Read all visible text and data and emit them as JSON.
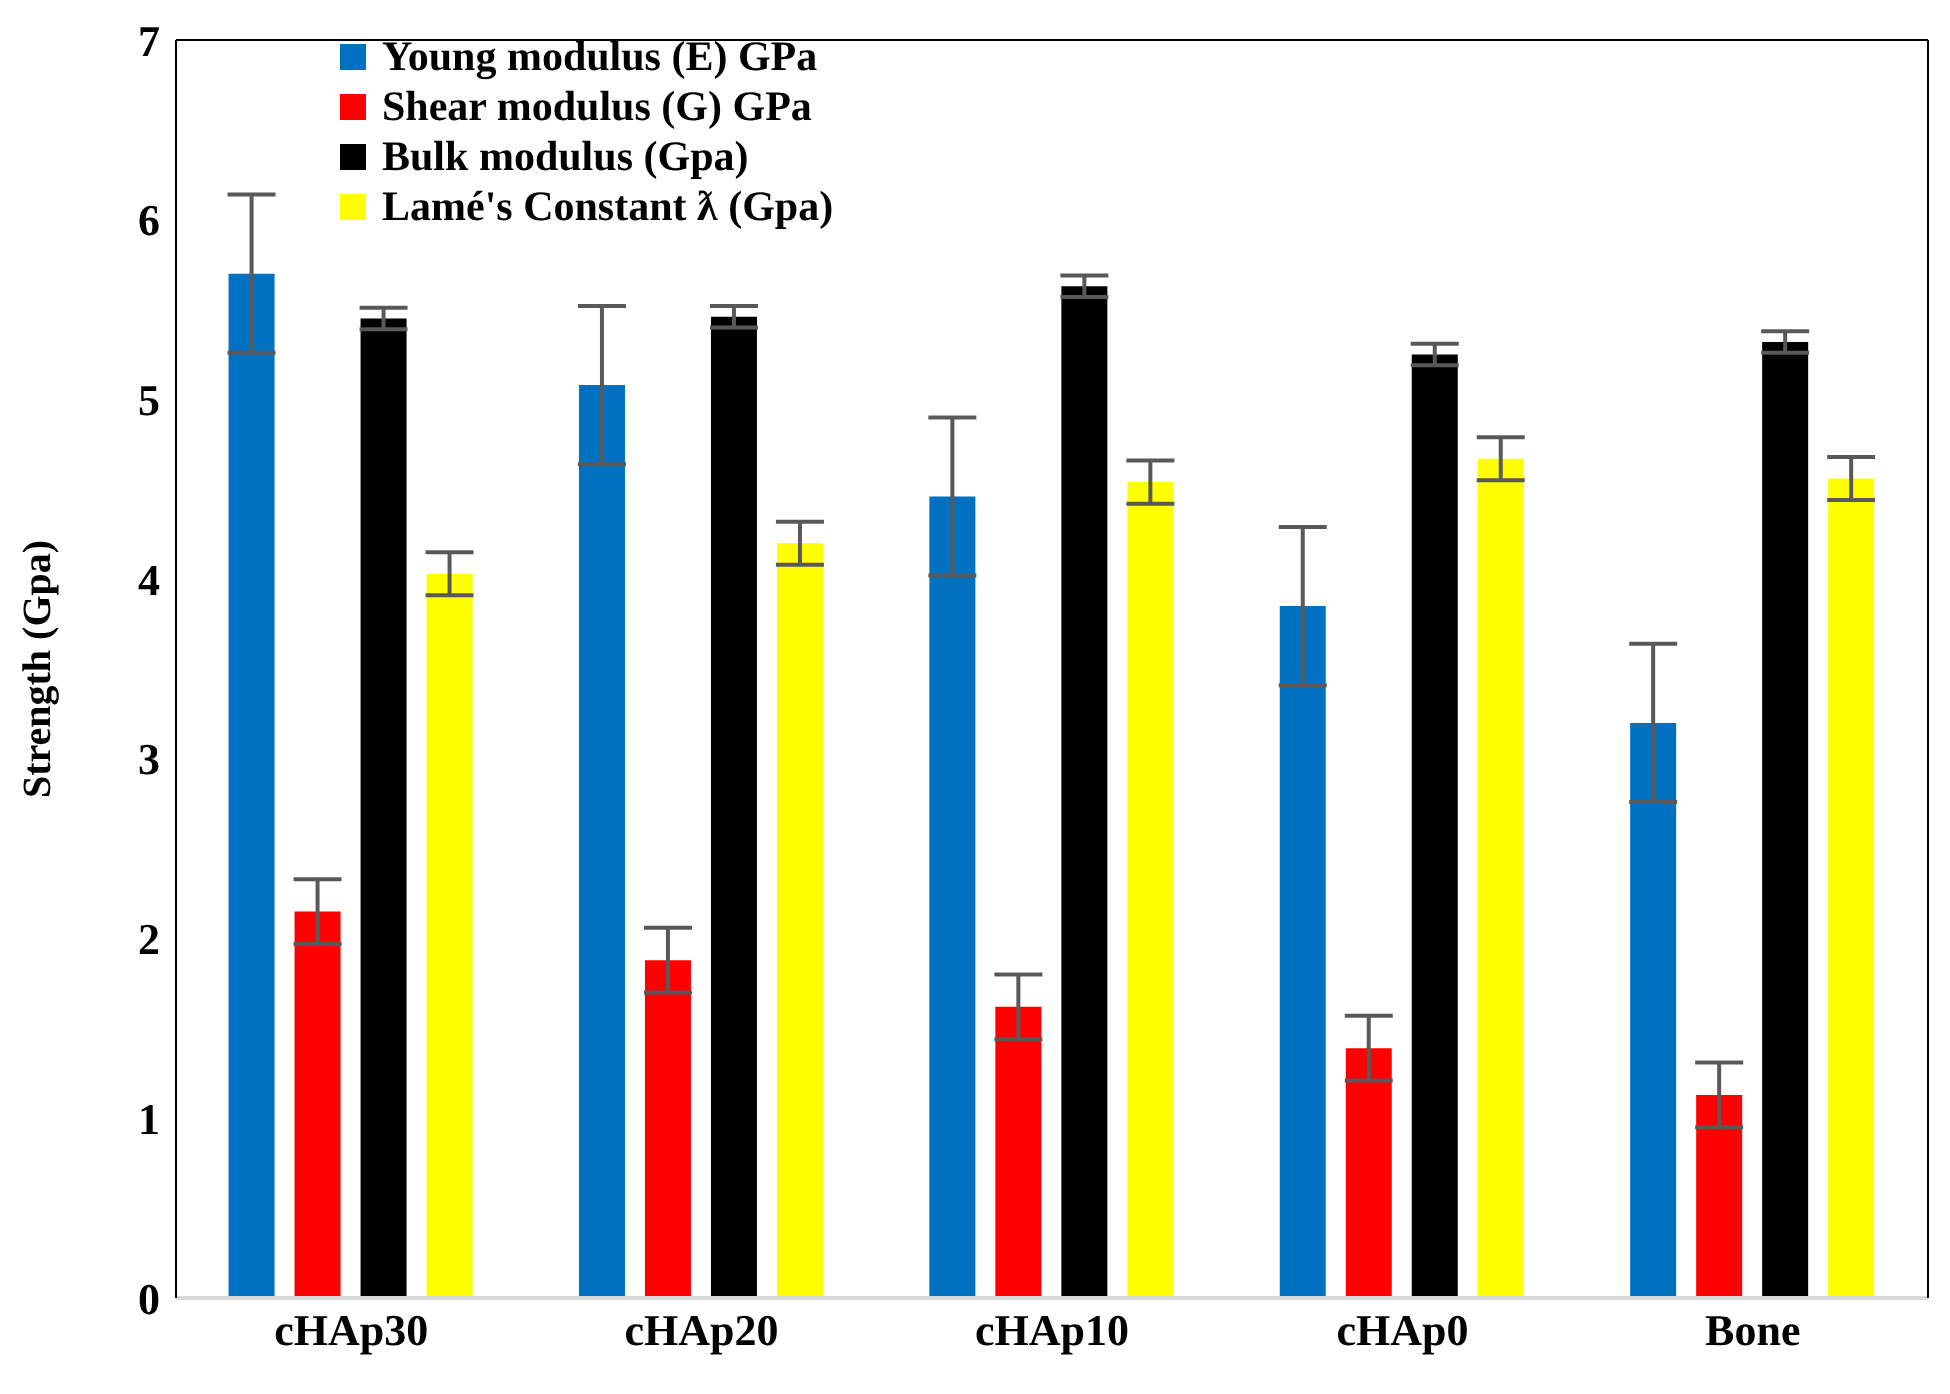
{
  "chart_data": {
    "type": "bar",
    "ylabel": "Strength (Gpa)",
    "categories": [
      "cHAp30",
      "cHAp20",
      "cHAp10",
      "cHAp0",
      "Bone"
    ],
    "series": [
      {
        "name": "Young modulus (E) GPa",
        "color": "#0070c0",
        "values": [
          5.7,
          5.08,
          4.46,
          3.85,
          3.2
        ],
        "errors": [
          0.44,
          0.44,
          0.44,
          0.44,
          0.44
        ]
      },
      {
        "name": "Shear modulus (G) GPa",
        "color": "#ff0000",
        "values": [
          2.15,
          1.88,
          1.62,
          1.39,
          1.13
        ],
        "errors": [
          0.18,
          0.18,
          0.18,
          0.18,
          0.18
        ]
      },
      {
        "name": "Bulk modulus (Gpa)",
        "color": "#000000",
        "values": [
          5.45,
          5.46,
          5.63,
          5.25,
          5.32
        ],
        "errors": [
          0.06,
          0.06,
          0.06,
          0.06,
          0.06
        ]
      },
      {
        "name": "Lamé's Constant ƛ (Gpa)",
        "color": "#ffff00",
        "values": [
          4.03,
          4.2,
          4.54,
          4.67,
          4.56
        ],
        "errors": [
          0.12,
          0.12,
          0.12,
          0.12,
          0.12
        ]
      }
    ],
    "ylim": [
      0,
      7
    ],
    "yticks": [
      0,
      1,
      2,
      3,
      4,
      5,
      6,
      7
    ],
    "grid": false,
    "legend": "top"
  }
}
